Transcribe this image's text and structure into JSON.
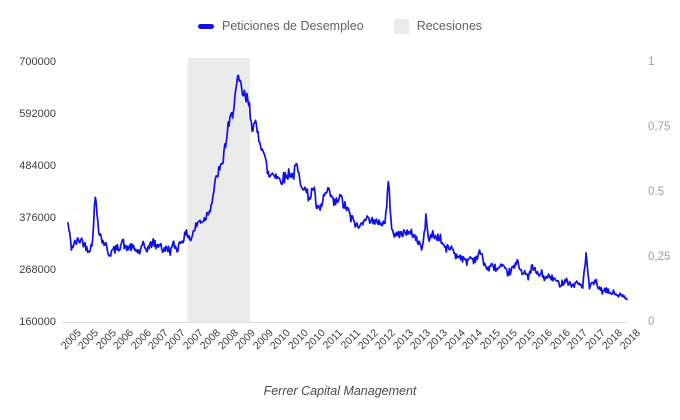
{
  "legend": {
    "series_label": "Peticiones de Desempleo",
    "recessions_label": "Recesiones"
  },
  "caption": "Ferrer Capital Management",
  "colors": {
    "line": "#0f10e8",
    "recession_band": "#ebebeb",
    "axis_line": "#e0e0e0",
    "left_axis_text": "#3d3d3d",
    "right_axis_text": "#9e9e9e",
    "x_axis_text": "#3d3d3d",
    "legend_text": "#616161",
    "caption_text": "#4a4a4a"
  },
  "chart_data": {
    "type": "line",
    "title": "",
    "legend_position": "top-center",
    "grid": "off",
    "series": [
      {
        "name": "Peticiones de Desempleo",
        "frequency": "monthly",
        "start": "2005-01",
        "end": "2018-09",
        "values": [
          365000,
          316000,
          324000,
          330000,
          332000,
          320000,
          312000,
          318000,
          420000,
          356000,
          330000,
          322000,
          302000,
          308000,
          312000,
          316000,
          330000,
          312000,
          318000,
          314000,
          310000,
          306000,
          320000,
          312000,
          318000,
          328000,
          316000,
          326000,
          306000,
          316000,
          308000,
          322000,
          312000,
          328000,
          336000,
          346000,
          332000,
          352000,
          366000,
          372000,
          374000,
          388000,
          404000,
          442000,
          472000,
          480000,
          522000,
          562000,
          588000,
          632000,
          662000,
          640000,
          626000,
          616000,
          572000,
          566000,
          546000,
          526000,
          492000,
          462000,
          472000,
          468000,
          456000,
          460000,
          462000,
          474000,
          462000,
          486000,
          456000,
          446000,
          428000,
          420000,
          442000,
          396000,
          392000,
          420000,
          430000,
          426000,
          406000,
          412000,
          420000,
          402000,
          396000,
          376000,
          370000,
          356000,
          362000,
          382000,
          372000,
          378000,
          362000,
          372000,
          366000,
          366000,
          448000,
          362000,
          336000,
          346000,
          342000,
          352000,
          342000,
          346000,
          336000,
          326000,
          312000,
          376000,
          332000,
          344000,
          336000,
          338000,
          322000,
          312000,
          316000,
          312000,
          296000,
          300000,
          290000,
          286000,
          296000,
          290000,
          296000,
          306000,
          286000,
          270000,
          276000,
          276000,
          270000,
          276000,
          270000,
          262000,
          268000,
          276000,
          286000,
          266000,
          266000,
          250000,
          276000,
          268000,
          258000,
          262000,
          250000,
          256000,
          252000,
          248000,
          240000,
          242000,
          250000,
          242000,
          236000,
          242000,
          240000,
          236000,
          298000,
          232000,
          240000,
          244000,
          228000,
          224000,
          226000,
          222000,
          222000,
          218000,
          216000,
          212000,
          208000
        ]
      }
    ],
    "recessions": [
      {
        "start": 2007.92,
        "end": 2009.45
      }
    ],
    "x_axis": {
      "range": [
        2005.0,
        2018.6667
      ],
      "tick_labels": [
        "2005",
        "2005",
        "2005",
        "2006",
        "2006",
        "2007",
        "2007",
        "2007",
        "2008",
        "2008",
        "2009",
        "2009",
        "2010",
        "2010",
        "2010",
        "2011",
        "2011",
        "2012",
        "2012",
        "2013",
        "2013",
        "2013",
        "2014",
        "2014",
        "2015",
        "2015",
        "2015",
        "2016",
        "2016",
        "2017",
        "2017",
        "2018",
        "2018"
      ]
    },
    "y_axis_left": {
      "min": 160000,
      "max": 700000,
      "tick_labels": [
        "700000",
        "592000",
        "484000",
        "376000",
        "268000",
        "160000"
      ]
    },
    "y_axis_right": {
      "min": 0,
      "max": 1,
      "tick_labels": [
        "1",
        "0,75",
        "0,5",
        "0,25",
        "0"
      ]
    },
    "noise_hint": {
      "weekly_jitter_fraction": 0.027
    }
  }
}
